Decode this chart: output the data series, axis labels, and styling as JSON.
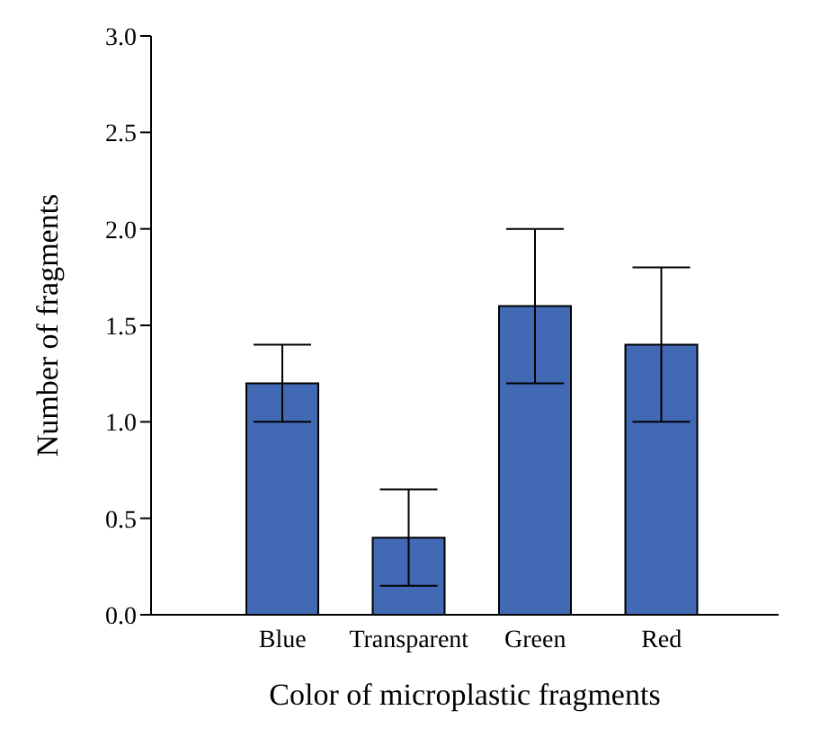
{
  "chart_data": {
    "type": "bar",
    "xlabel": "Color of microplastic fragments",
    "ylabel": "Number of fragments",
    "categories": [
      "Blue",
      "Transparent",
      "Green",
      "Red"
    ],
    "values": [
      1.2,
      0.4,
      1.6,
      1.4
    ],
    "errors": [
      0.2,
      0.25,
      0.4,
      0.4
    ],
    "color": "#4169b4",
    "ylim": [
      0,
      3
    ],
    "yticks": [
      {
        "value": 0,
        "label": "0.0"
      },
      {
        "value": 0.5,
        "label": "0.5"
      },
      {
        "value": 1,
        "label": "1.0"
      },
      {
        "value": 1.5,
        "label": "1.5"
      },
      {
        "value": 2,
        "label": "2.0"
      },
      {
        "value": 2.5,
        "label": "2.5"
      },
      {
        "value": 3,
        "label": "3.0"
      }
    ],
    "grid": false,
    "legend": false
  }
}
